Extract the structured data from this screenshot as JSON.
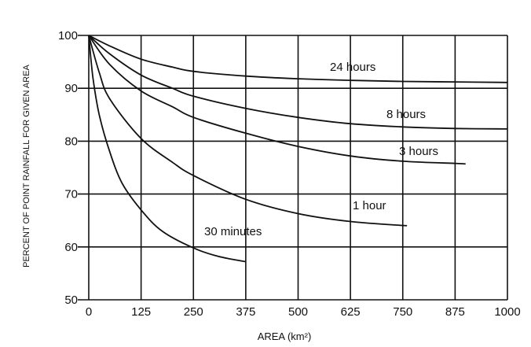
{
  "chart_data": {
    "type": "line",
    "title": "",
    "xlabel": "AREA (km²)",
    "ylabel": "PERCENT  OF POINT RAINFALL FOR GIVEN AREA",
    "xlim": [
      0,
      1000
    ],
    "ylim": [
      50,
      100
    ],
    "xticks": [
      "0",
      "125",
      "250",
      "375",
      "500",
      "625",
      "750",
      "875",
      "1000"
    ],
    "yticks": [
      "50",
      "60",
      "70",
      "80",
      "90",
      "100"
    ],
    "grid": true,
    "series": [
      {
        "name": "24  hours",
        "x": [
          0,
          50,
          125,
          200,
          250,
          375,
          500,
          625,
          750,
          875,
          1000
        ],
        "y": [
          100,
          98,
          95.5,
          94,
          93.2,
          92.3,
          91.8,
          91.5,
          91.3,
          91.2,
          91.1
        ]
      },
      {
        "name": "8  hours",
        "x": [
          0,
          50,
          125,
          200,
          250,
          375,
          500,
          625,
          750,
          875,
          1000
        ],
        "y": [
          100,
          96.5,
          92.5,
          90,
          88.5,
          86.2,
          84.5,
          83.3,
          82.7,
          82.4,
          82.3
        ]
      },
      {
        "name": "3  hours",
        "x": [
          0,
          50,
          125,
          200,
          250,
          375,
          500,
          625,
          750,
          875,
          900
        ],
        "y": [
          100,
          94.5,
          89.5,
          86.5,
          84.5,
          81.5,
          79,
          77.2,
          76.2,
          75.8,
          75.7
        ]
      },
      {
        "name": "1  hour",
        "x": [
          0,
          25,
          50,
          125,
          200,
          250,
          375,
          500,
          625,
          760
        ],
        "y": [
          100,
          93,
          88,
          80.5,
          76,
          73.5,
          69,
          66.3,
          64.8,
          64
        ]
      },
      {
        "name": "30  minutes",
        "x": [
          0,
          10,
          25,
          50,
          80,
          125,
          175,
          250,
          310,
          375
        ],
        "y": [
          100,
          92,
          85,
          78,
          72,
          67,
          63,
          59.8,
          58.2,
          57.2
        ]
      }
    ]
  }
}
